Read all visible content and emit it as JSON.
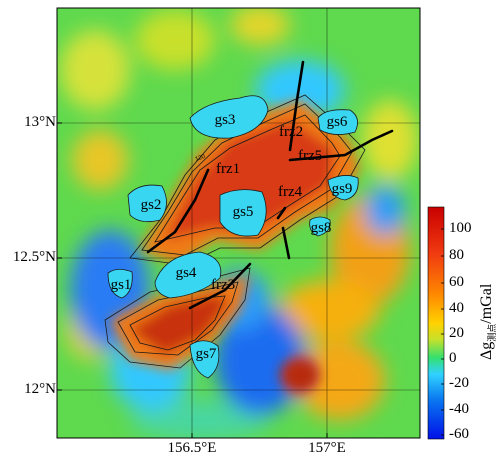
{
  "map": {
    "lat_ticks": [
      "13°N",
      "12.5°N",
      "12°N"
    ],
    "lon_ticks": [
      "156.5°E",
      "157°E"
    ]
  },
  "zones": [
    "gs1",
    "gs2",
    "gs3",
    "gs4",
    "gs5",
    "gs6",
    "gs7",
    "gs8",
    "gs9"
  ],
  "faults": [
    "frz1",
    "frz2",
    "frz3",
    "frz4",
    "frz5"
  ],
  "contour_label": "120",
  "colorbar": {
    "label_prefix": "Δg",
    "label_sub": "测点",
    "label_unit": "/mGal",
    "ticks": [
      "100",
      "80",
      "60",
      "40",
      "20",
      "0",
      "-20",
      "-40",
      "-60"
    ],
    "range": [
      -60,
      110
    ],
    "colors": [
      "#0010e8",
      "#0a78f0",
      "#30d2ff",
      "#33e070",
      "#c8e02a",
      "#ffd200",
      "#ff8a00",
      "#f03a10",
      "#c80000"
    ]
  },
  "colors": {
    "background": "#5fd94e",
    "high": "#d83a14",
    "low": "#1c6cf0",
    "zone_fill": "#39d6f2",
    "fault_line": "#000000"
  }
}
